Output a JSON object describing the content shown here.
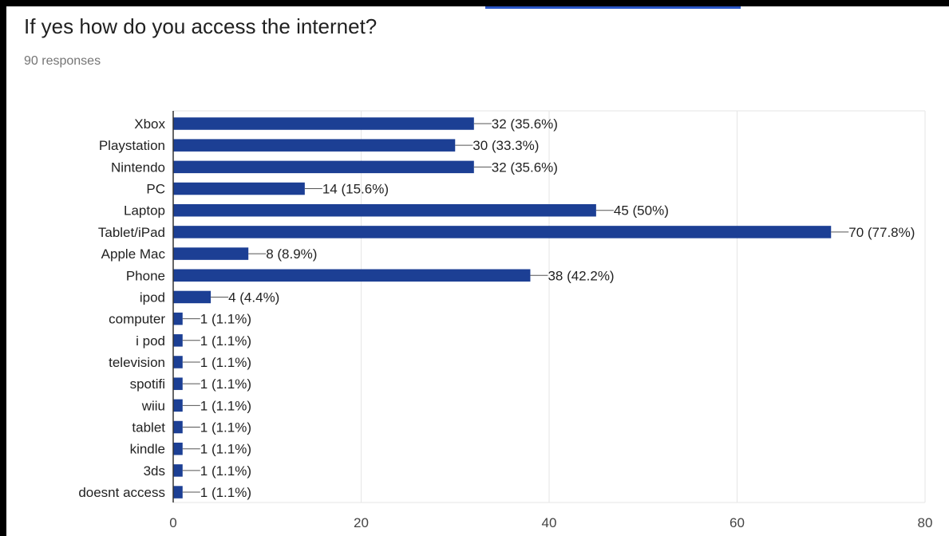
{
  "question": {
    "title": "If yes how do you access the internet?",
    "responses": "90 responses"
  },
  "colors": {
    "bar": "#1c3f94",
    "grid": "#e6e6e6",
    "axis": "#333333",
    "accent": "#2a56c6"
  },
  "chart_data": {
    "type": "bar",
    "orientation": "horizontal",
    "categories": [
      "Xbox",
      "Playstation",
      "Nintendo",
      "PC",
      "Laptop",
      "Tablet/iPad",
      "Apple Mac",
      "Phone",
      "ipod",
      "computer",
      "i pod",
      "television",
      "spotifi",
      "wiiu",
      "tablet",
      "kindle",
      "3ds",
      "doesnt access"
    ],
    "values": [
      32,
      30,
      32,
      14,
      45,
      70,
      8,
      38,
      4,
      1,
      1,
      1,
      1,
      1,
      1,
      1,
      1,
      1
    ],
    "data_labels": [
      "32 (35.6%)",
      "30 (33.3%)",
      "32 (35.6%)",
      "14 (15.6%)",
      "45 (50%)",
      "70 (77.8%)",
      "8 (8.9%)",
      "38 (42.2%)",
      "4 (4.4%)",
      "1 (1.1%)",
      "1 (1.1%)",
      "1 (1.1%)",
      "1 (1.1%)",
      "1 (1.1%)",
      "1 (1.1%)",
      "1 (1.1%)",
      "1 (1.1%)",
      "1 (1.1%)"
    ],
    "xlim": [
      0,
      80
    ],
    "xticks": [
      0,
      20,
      40,
      60,
      80
    ],
    "grid": true,
    "title": "",
    "xlabel": "",
    "ylabel": ""
  }
}
